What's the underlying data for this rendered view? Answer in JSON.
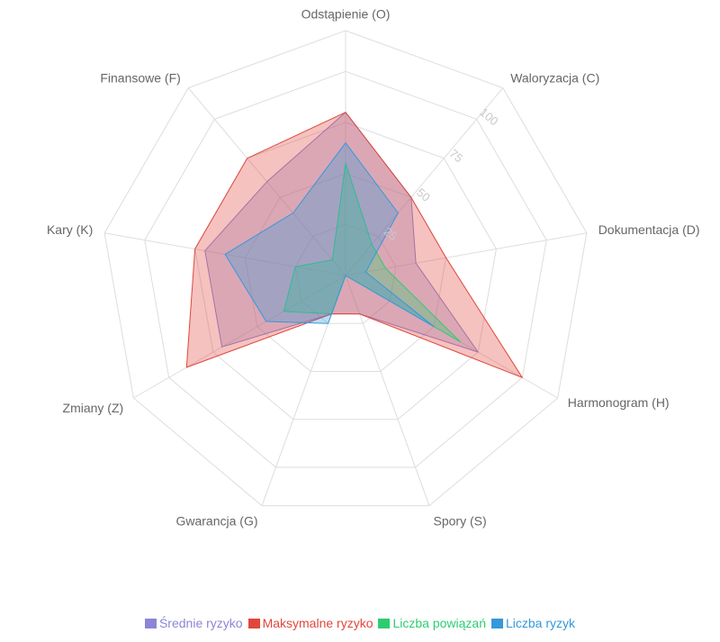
{
  "chart_data": {
    "type": "radar",
    "axes": [
      "Odstąpienie (O)",
      "Waloryzacja (C)",
      "Dokumentacja (D)",
      "Harmonogram (H)",
      "Spory (S)",
      "Gwarancja (G)",
      "Zmiany (Z)",
      "Kary (K)",
      "Finansowe (F)"
    ],
    "rlim": [
      0,
      120
    ],
    "ticks": [
      25,
      50,
      75,
      100
    ],
    "grid": true,
    "legend_position": "bottom",
    "series": [
      {
        "name": "Średnie ryzyko",
        "color": "#8b86d6",
        "values": [
          80,
          50,
          35,
          75,
          20,
          20,
          70,
          70,
          60
        ]
      },
      {
        "name": "Maksymalne ryzyko",
        "color": "#e0473c",
        "values": [
          80,
          50,
          50,
          100,
          20,
          20,
          90,
          75,
          75
        ]
      },
      {
        "name": "Liczba powiązań",
        "color": "#2ecc71",
        "values": [
          55,
          20,
          20,
          65,
          0,
          20,
          35,
          25,
          10
        ]
      },
      {
        "name": "Liczba ryzyk",
        "color": "#3498db",
        "values": [
          65,
          40,
          10,
          50,
          0,
          25,
          45,
          60,
          40
        ]
      }
    ]
  }
}
